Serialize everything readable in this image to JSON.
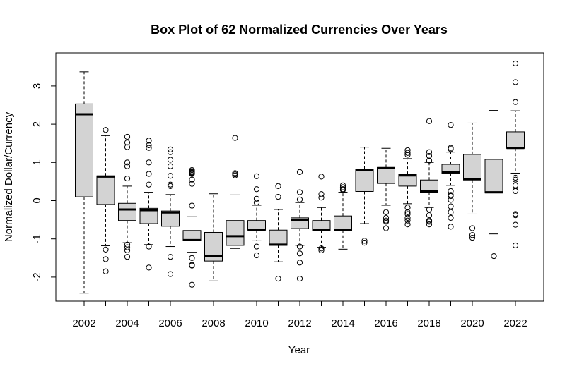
{
  "chart_data": {
    "type": "boxplot",
    "title": "Box Plot of 62 Normalized Currencies Over Years",
    "xlabel": "Year",
    "ylabel": "Normalized Dollar/Currency",
    "x_tick_labels": [
      "2002",
      "2004",
      "2006",
      "2008",
      "2010",
      "2012",
      "2014",
      "2016",
      "2018",
      "2020",
      "2022"
    ],
    "y_ticks": [
      -2,
      -1,
      0,
      1,
      2,
      3
    ],
    "ylim": [
      -2.65,
      3.9
    ],
    "box_fill": "#d3d3d3",
    "series": [
      {
        "year": 2002,
        "whisker_low": -2.42,
        "q1": 0.1,
        "median": 2.26,
        "q3": 2.53,
        "whisker_high": 3.37,
        "outliers": []
      },
      {
        "year": 2003,
        "whisker_low": -1.18,
        "q1": -0.1,
        "median": 0.63,
        "q3": 0.65,
        "whisker_high": 1.7,
        "outliers": [
          1.85,
          -1.28,
          -1.53,
          -1.85
        ]
      },
      {
        "year": 2004,
        "whisker_low": -1.1,
        "q1": -0.52,
        "median": -0.23,
        "q3": -0.07,
        "whisker_high": 0.38,
        "outliers": [
          1.67,
          1.52,
          1.4,
          1.0,
          0.9,
          0.58,
          -1.15,
          -1.22,
          -1.3,
          -1.47
        ]
      },
      {
        "year": 2005,
        "whisker_low": -1.15,
        "q1": -0.6,
        "median": -0.25,
        "q3": -0.2,
        "whisker_high": 0.22,
        "outliers": [
          1.57,
          1.45,
          1.38,
          1.0,
          0.7,
          0.42,
          -1.2,
          -1.75
        ]
      },
      {
        "year": 2006,
        "whisker_low": -1.2,
        "q1": -0.67,
        "median": -0.31,
        "q3": -0.27,
        "whisker_high": 0.16,
        "outliers": [
          1.34,
          1.27,
          1.07,
          0.9,
          0.65,
          0.42,
          0.38,
          -1.47,
          -1.92
        ]
      },
      {
        "year": 2007,
        "whisker_low": -1.35,
        "q1": -1.05,
        "median": -1.03,
        "q3": -0.78,
        "whisker_high": -0.42,
        "outliers": [
          0.8,
          0.77,
          0.75,
          0.73,
          0.72,
          0.7,
          0.55,
          0.44,
          -0.13,
          -1.5,
          -1.68,
          -1.7,
          -2.2
        ]
      },
      {
        "year": 2008,
        "whisker_low": -2.1,
        "q1": -1.58,
        "median": -1.45,
        "q3": -0.83,
        "whisker_high": 0.18,
        "outliers": []
      },
      {
        "year": 2009,
        "whisker_low": -1.25,
        "q1": -1.17,
        "median": -0.93,
        "q3": -0.52,
        "whisker_high": 0.15,
        "outliers": [
          1.64,
          0.72,
          0.69,
          0.66
        ]
      },
      {
        "year": 2010,
        "whisker_low": -1.05,
        "q1": -0.77,
        "median": -0.76,
        "q3": -0.52,
        "whisker_high": -0.12,
        "outliers": [
          0.64,
          0.3,
          0.05,
          -0.05,
          -1.2,
          -1.43
        ]
      },
      {
        "year": 2011,
        "whisker_low": -1.6,
        "q1": -1.17,
        "median": -1.15,
        "q3": -0.77,
        "whisker_high": -0.23,
        "outliers": [
          0.38,
          0.1,
          -2.04
        ]
      },
      {
        "year": 2012,
        "whisker_low": -1.17,
        "q1": -0.73,
        "median": -0.5,
        "q3": -0.45,
        "whisker_high": -0.05,
        "outliers": [
          0.75,
          0.22,
          0.03,
          -1.2,
          -1.38,
          -1.62,
          -2.04
        ]
      },
      {
        "year": 2013,
        "whisker_low": -1.22,
        "q1": -0.78,
        "median": -0.77,
        "q3": -0.52,
        "whisker_high": -0.18,
        "outliers": [
          0.63,
          0.17,
          0.08,
          -1.25,
          -1.3
        ]
      },
      {
        "year": 2014,
        "whisker_low": -1.27,
        "q1": -0.78,
        "median": -0.77,
        "q3": -0.4,
        "whisker_high": 0.22,
        "outliers": [
          0.4,
          0.35,
          0.3,
          0.28
        ]
      },
      {
        "year": 2015,
        "whisker_low": -0.6,
        "q1": 0.24,
        "median": 0.81,
        "q3": 0.83,
        "whisker_high": 1.4,
        "outliers": [
          -1.05,
          -1.1
        ]
      },
      {
        "year": 2016,
        "whisker_low": -0.12,
        "q1": 0.45,
        "median": 0.85,
        "q3": 0.87,
        "whisker_high": 1.37,
        "outliers": [
          -0.3,
          -0.45,
          -0.52,
          -0.55,
          -0.72
        ]
      },
      {
        "year": 2017,
        "whisker_low": -0.08,
        "q1": 0.38,
        "median": 0.66,
        "q3": 0.69,
        "whisker_high": 1.1,
        "outliers": [
          1.32,
          1.25,
          1.2,
          -0.18,
          -0.3,
          -0.35,
          -0.45,
          -0.52,
          -0.62
        ]
      },
      {
        "year": 2018,
        "whisker_low": -0.18,
        "q1": 0.22,
        "median": 0.25,
        "q3": 0.54,
        "whisker_high": 1.0,
        "outliers": [
          2.08,
          1.27,
          1.17,
          1.05,
          -0.23,
          -0.38,
          -0.52,
          -0.55,
          -0.62
        ]
      },
      {
        "year": 2019,
        "whisker_low": 0.4,
        "q1": 0.72,
        "median": 0.75,
        "q3": 0.95,
        "whisker_high": 1.27,
        "outliers": [
          1.98,
          1.38,
          1.35,
          0.25,
          0.15,
          0.12,
          0.02,
          -0.15,
          -0.3,
          -0.45,
          -0.68
        ]
      },
      {
        "year": 2020,
        "whisker_low": -0.35,
        "q1": 0.54,
        "median": 0.57,
        "q3": 1.21,
        "whisker_high": 2.03,
        "outliers": [
          -0.72,
          -0.9,
          -0.97
        ]
      },
      {
        "year": 2021,
        "whisker_low": -0.87,
        "q1": 0.2,
        "median": 0.22,
        "q3": 1.08,
        "whisker_high": 2.36,
        "outliers": [
          -1.45
        ]
      },
      {
        "year": 2022,
        "whisker_low": 0.72,
        "q1": 1.37,
        "median": 1.38,
        "q3": 1.8,
        "whisker_high": 2.35,
        "outliers": [
          3.59,
          3.1,
          2.58,
          0.6,
          0.55,
          0.4,
          0.26,
          0.25,
          -0.35,
          -0.38,
          -0.63,
          -1.17
        ]
      }
    ]
  }
}
